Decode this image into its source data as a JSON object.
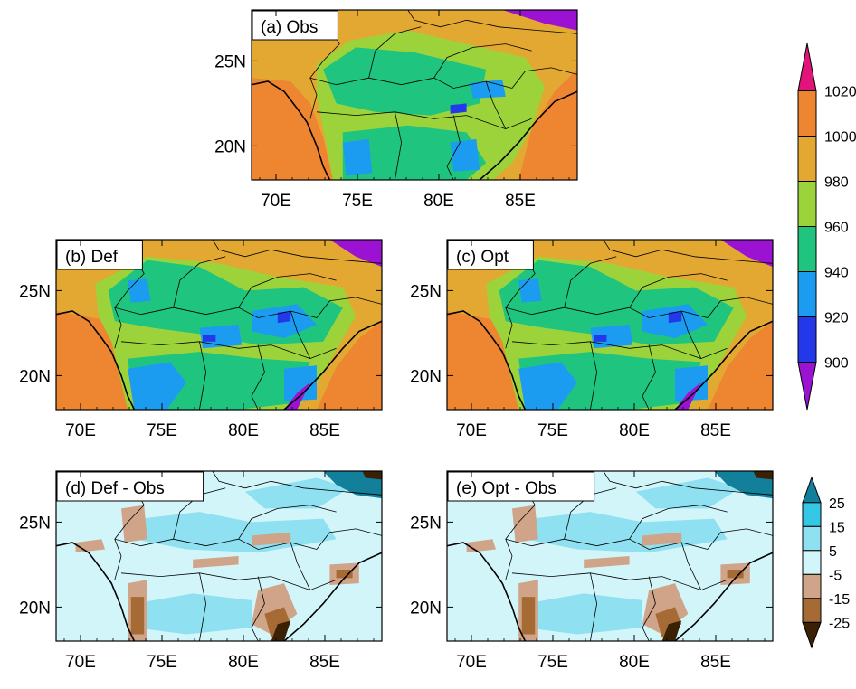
{
  "panels": [
    {
      "id": "obs",
      "label": "(a) Obs",
      "kind": "abs",
      "xticks": [
        "70E",
        "75E",
        "80E",
        "85E"
      ],
      "yticks": [
        "25N",
        "20N"
      ]
    },
    {
      "id": "def",
      "label": "(b) Def",
      "kind": "abs",
      "xticks": [
        "70E",
        "75E",
        "80E",
        "85E"
      ],
      "yticks": [
        "25N",
        "20N"
      ]
    },
    {
      "id": "opt",
      "label": "(c) Opt",
      "kind": "abs",
      "xticks": [
        "70E",
        "75E",
        "80E",
        "85E"
      ],
      "yticks": [
        "25N",
        "20N"
      ]
    },
    {
      "id": "defobs",
      "label": "(d) Def - Obs",
      "kind": "diff",
      "xticks": [
        "70E",
        "75E",
        "80E",
        "85E"
      ],
      "yticks": [
        "25N",
        "20N"
      ]
    },
    {
      "id": "optobs",
      "label": "(e) Opt - Obs",
      "kind": "diff",
      "xticks": [
        "70E",
        "75E",
        "80E",
        "85E"
      ],
      "yticks": [
        "25N",
        "20N"
      ]
    }
  ],
  "map_extent": {
    "lon": [
      68.5,
      88.5
    ],
    "lat": [
      18,
      28
    ]
  },
  "colorbar_abs": {
    "labels": [
      "1020",
      "1000",
      "980",
      "960",
      "940",
      "920",
      "900"
    ],
    "colors_top_to_bottom": [
      "#e0147a",
      "#ee8530",
      "#e3a832",
      "#9cd33a",
      "#1fc47e",
      "#1c9cf0",
      "#2338e8",
      "#9b12d2"
    ]
  },
  "colorbar_diff": {
    "labels": [
      "25",
      "15",
      "5",
      "-5",
      "-15",
      "-25"
    ],
    "colors_top_to_bottom": [
      "#12809a",
      "#34c8e6",
      "#8fe0f0",
      "#d2f5fa",
      "#cfa489",
      "#a66a35",
      "#3a2005"
    ]
  }
}
